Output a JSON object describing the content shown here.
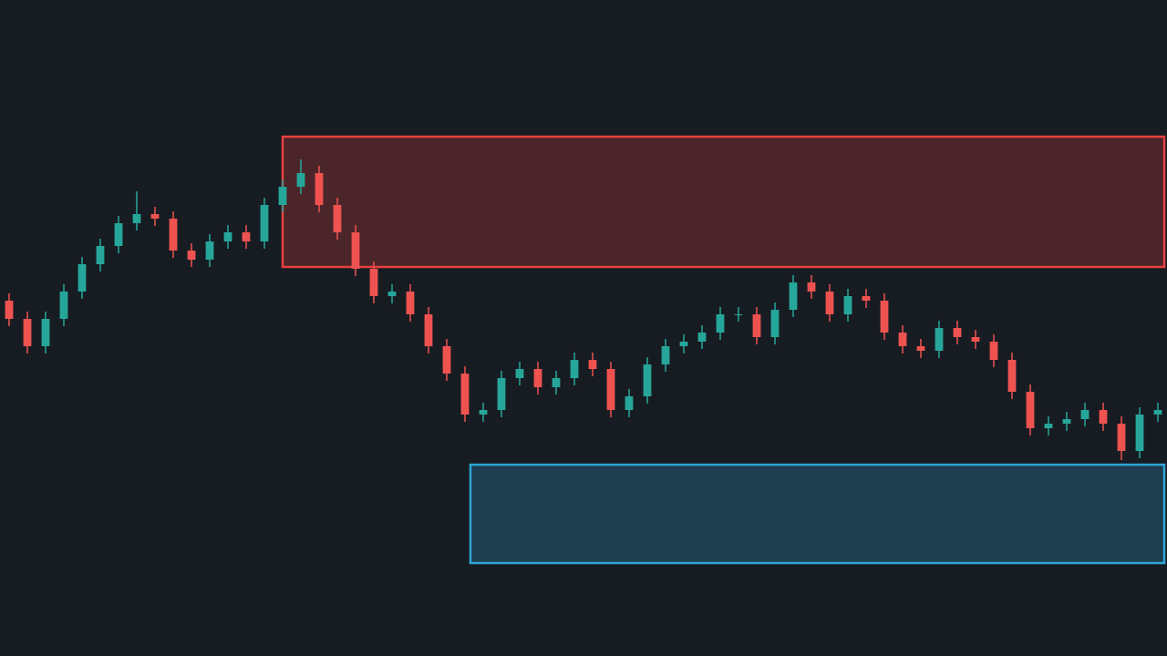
{
  "chart_data": {
    "type": "candlestick",
    "xlim": [
      -0.5,
      63.5
    ],
    "ylim": [
      0,
      72
    ],
    "up_color": "#26a69a",
    "down_color": "#ef5350",
    "open": [
      39.0,
      37.0,
      34.0,
      37.0,
      40.0,
      43.0,
      45.0,
      47.5,
      48.5,
      48.0,
      44.5,
      43.5,
      45.5,
      46.5,
      45.5,
      49.5,
      51.5,
      53.0,
      49.5,
      46.5,
      42.5,
      39.5,
      40.0,
      37.5,
      34.0,
      31.0,
      26.5,
      27.0,
      30.5,
      31.5,
      29.5,
      30.5,
      32.5,
      31.5,
      27.0,
      28.5,
      32.0,
      34.0,
      34.5,
      35.5,
      37.5,
      37.5,
      35.0,
      38.0,
      41.0,
      40.0,
      37.5,
      39.5,
      39.0,
      35.5,
      34.0,
      33.5,
      36.0,
      35.0,
      34.5,
      32.5,
      29.0,
      25.0,
      25.5,
      26.0,
      27.0,
      25.5,
      22.5,
      26.5
    ],
    "high": [
      39.8,
      37.8,
      37.8,
      40.8,
      43.8,
      45.8,
      48.3,
      51.0,
      49.3,
      48.8,
      45.3,
      46.3,
      47.3,
      47.3,
      50.3,
      52.3,
      54.5,
      53.8,
      50.3,
      47.3,
      43.3,
      40.8,
      40.8,
      38.3,
      34.8,
      31.8,
      27.8,
      31.3,
      32.3,
      32.3,
      31.3,
      33.3,
      33.3,
      32.3,
      29.3,
      32.8,
      34.8,
      35.3,
      36.3,
      38.3,
      38.3,
      38.3,
      38.8,
      41.8,
      41.8,
      40.8,
      40.3,
      40.3,
      39.8,
      36.3,
      34.8,
      36.8,
      36.8,
      35.8,
      35.3,
      33.3,
      29.8,
      26.3,
      26.8,
      27.8,
      27.8,
      26.3,
      27.3,
      27.8
    ],
    "low": [
      36.2,
      33.2,
      33.2,
      36.2,
      39.2,
      42.2,
      44.2,
      46.7,
      47.2,
      43.7,
      42.7,
      42.7,
      44.7,
      44.7,
      44.7,
      48.7,
      50.7,
      48.7,
      45.7,
      41.7,
      38.7,
      38.7,
      36.7,
      33.2,
      30.2,
      25.7,
      25.7,
      26.2,
      29.7,
      28.7,
      28.7,
      29.7,
      30.7,
      26.2,
      26.2,
      27.7,
      31.2,
      33.2,
      33.7,
      34.7,
      36.7,
      34.2,
      34.2,
      37.2,
      39.2,
      36.7,
      36.7,
      38.2,
      34.7,
      33.2,
      32.7,
      32.7,
      34.2,
      33.7,
      31.7,
      28.2,
      24.2,
      24.2,
      24.7,
      25.2,
      24.7,
      21.5,
      21.7,
      25.7
    ],
    "close": [
      37.0,
      34.0,
      37.0,
      40.0,
      43.0,
      45.0,
      47.5,
      48.5,
      48.0,
      44.5,
      43.5,
      45.5,
      46.5,
      45.5,
      49.5,
      51.5,
      53.0,
      49.5,
      46.5,
      42.5,
      39.5,
      40.0,
      37.5,
      34.0,
      31.0,
      26.5,
      27.0,
      30.5,
      31.5,
      29.5,
      30.5,
      32.5,
      31.5,
      27.0,
      28.5,
      32.0,
      34.0,
      34.5,
      35.5,
      37.5,
      37.5,
      35.0,
      38.0,
      41.0,
      40.0,
      37.5,
      39.5,
      39.0,
      35.5,
      34.0,
      33.5,
      36.0,
      35.0,
      34.5,
      32.5,
      29.0,
      25.0,
      25.5,
      26.0,
      27.0,
      25.5,
      22.5,
      26.5,
      27.0
    ],
    "zones": [
      {
        "x": [
          15,
          63.35
        ],
        "y": [
          42.7,
          57.0
        ],
        "color": "#e8403f"
      },
      {
        "x": [
          25.3,
          63.35
        ],
        "y": [
          10.2,
          21.0
        ],
        "color": "#2fa6d8"
      }
    ]
  }
}
